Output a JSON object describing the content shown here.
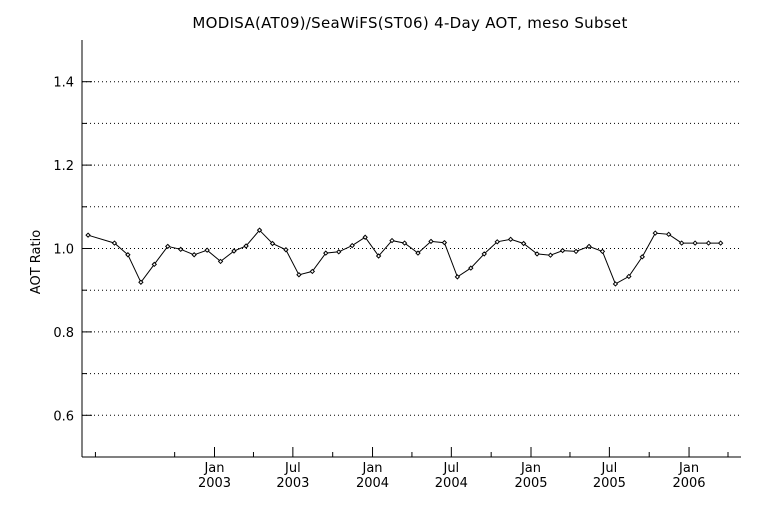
{
  "chart_data": {
    "type": "line",
    "title": "MODISA(AT09)/SeaWiFS(ST06) 4-Day AOT, meso Subset",
    "xlabel": "",
    "ylabel": "AOT Ratio",
    "ylim": [
      0.5,
      1.5
    ],
    "xlim": [
      "2002-03-01",
      "2006-05-01"
    ],
    "grid": "horizontal dotted",
    "y_ticks": [
      "0.6",
      "0.8",
      "1.0",
      "1.2",
      "1.4"
    ],
    "x_ticks": [
      {
        "date": "2003-01-01",
        "month": "Jan",
        "year": "2003"
      },
      {
        "date": "2003-07-01",
        "month": "Jul",
        "year": "2003"
      },
      {
        "date": "2004-01-01",
        "month": "Jan",
        "year": "2004"
      },
      {
        "date": "2004-07-01",
        "month": "Jul",
        "year": "2004"
      },
      {
        "date": "2005-01-01",
        "month": "Jan",
        "year": "2005"
      },
      {
        "date": "2005-07-01",
        "month": "Jul",
        "year": "2005"
      },
      {
        "date": "2006-01-01",
        "month": "Jan",
        "year": "2006"
      }
    ],
    "x": [
      "2002-03-15",
      "2002-05-15",
      "2002-06-15",
      "2002-07-15",
      "2002-08-15",
      "2002-09-15",
      "2002-10-15",
      "2002-11-15",
      "2002-12-15",
      "2003-01-15",
      "2003-02-15",
      "2003-03-15",
      "2003-04-15",
      "2003-05-15",
      "2003-06-15",
      "2003-07-15",
      "2003-08-15",
      "2003-09-15",
      "2003-10-15",
      "2003-11-15",
      "2003-12-15",
      "2004-01-15",
      "2004-02-15",
      "2004-03-15",
      "2004-04-15",
      "2004-05-15",
      "2004-06-15",
      "2004-07-15",
      "2004-08-15",
      "2004-09-15",
      "2004-10-15",
      "2004-11-15",
      "2004-12-15",
      "2005-01-15",
      "2005-02-15",
      "2005-03-15",
      "2005-04-15",
      "2005-05-15",
      "2005-06-15",
      "2005-07-15",
      "2005-08-15",
      "2005-09-15",
      "2005-10-15",
      "2005-11-15",
      "2005-12-15",
      "2006-01-15",
      "2006-02-15",
      "2006-03-15"
    ],
    "series": [
      {
        "color": "#000000",
        "marker": "diamond",
        "values": [
          1.032,
          1.013,
          0.985,
          0.919,
          0.962,
          1.005,
          0.998,
          0.985,
          0.996,
          0.969,
          0.994,
          1.006,
          1.044,
          1.012,
          0.997,
          0.937,
          0.945,
          0.989,
          0.992,
          1.007,
          1.027,
          0.982,
          1.019,
          1.013,
          0.989,
          1.017,
          1.014,
          0.932,
          0.953,
          0.987,
          1.016,
          1.022,
          1.012,
          0.987,
          0.984,
          0.995,
          0.993,
          1.005,
          0.993,
          0.915,
          0.933,
          0.98,
          1.037,
          1.034,
          1.013,
          1.013,
          1.013,
          1.013
        ]
      }
    ]
  }
}
